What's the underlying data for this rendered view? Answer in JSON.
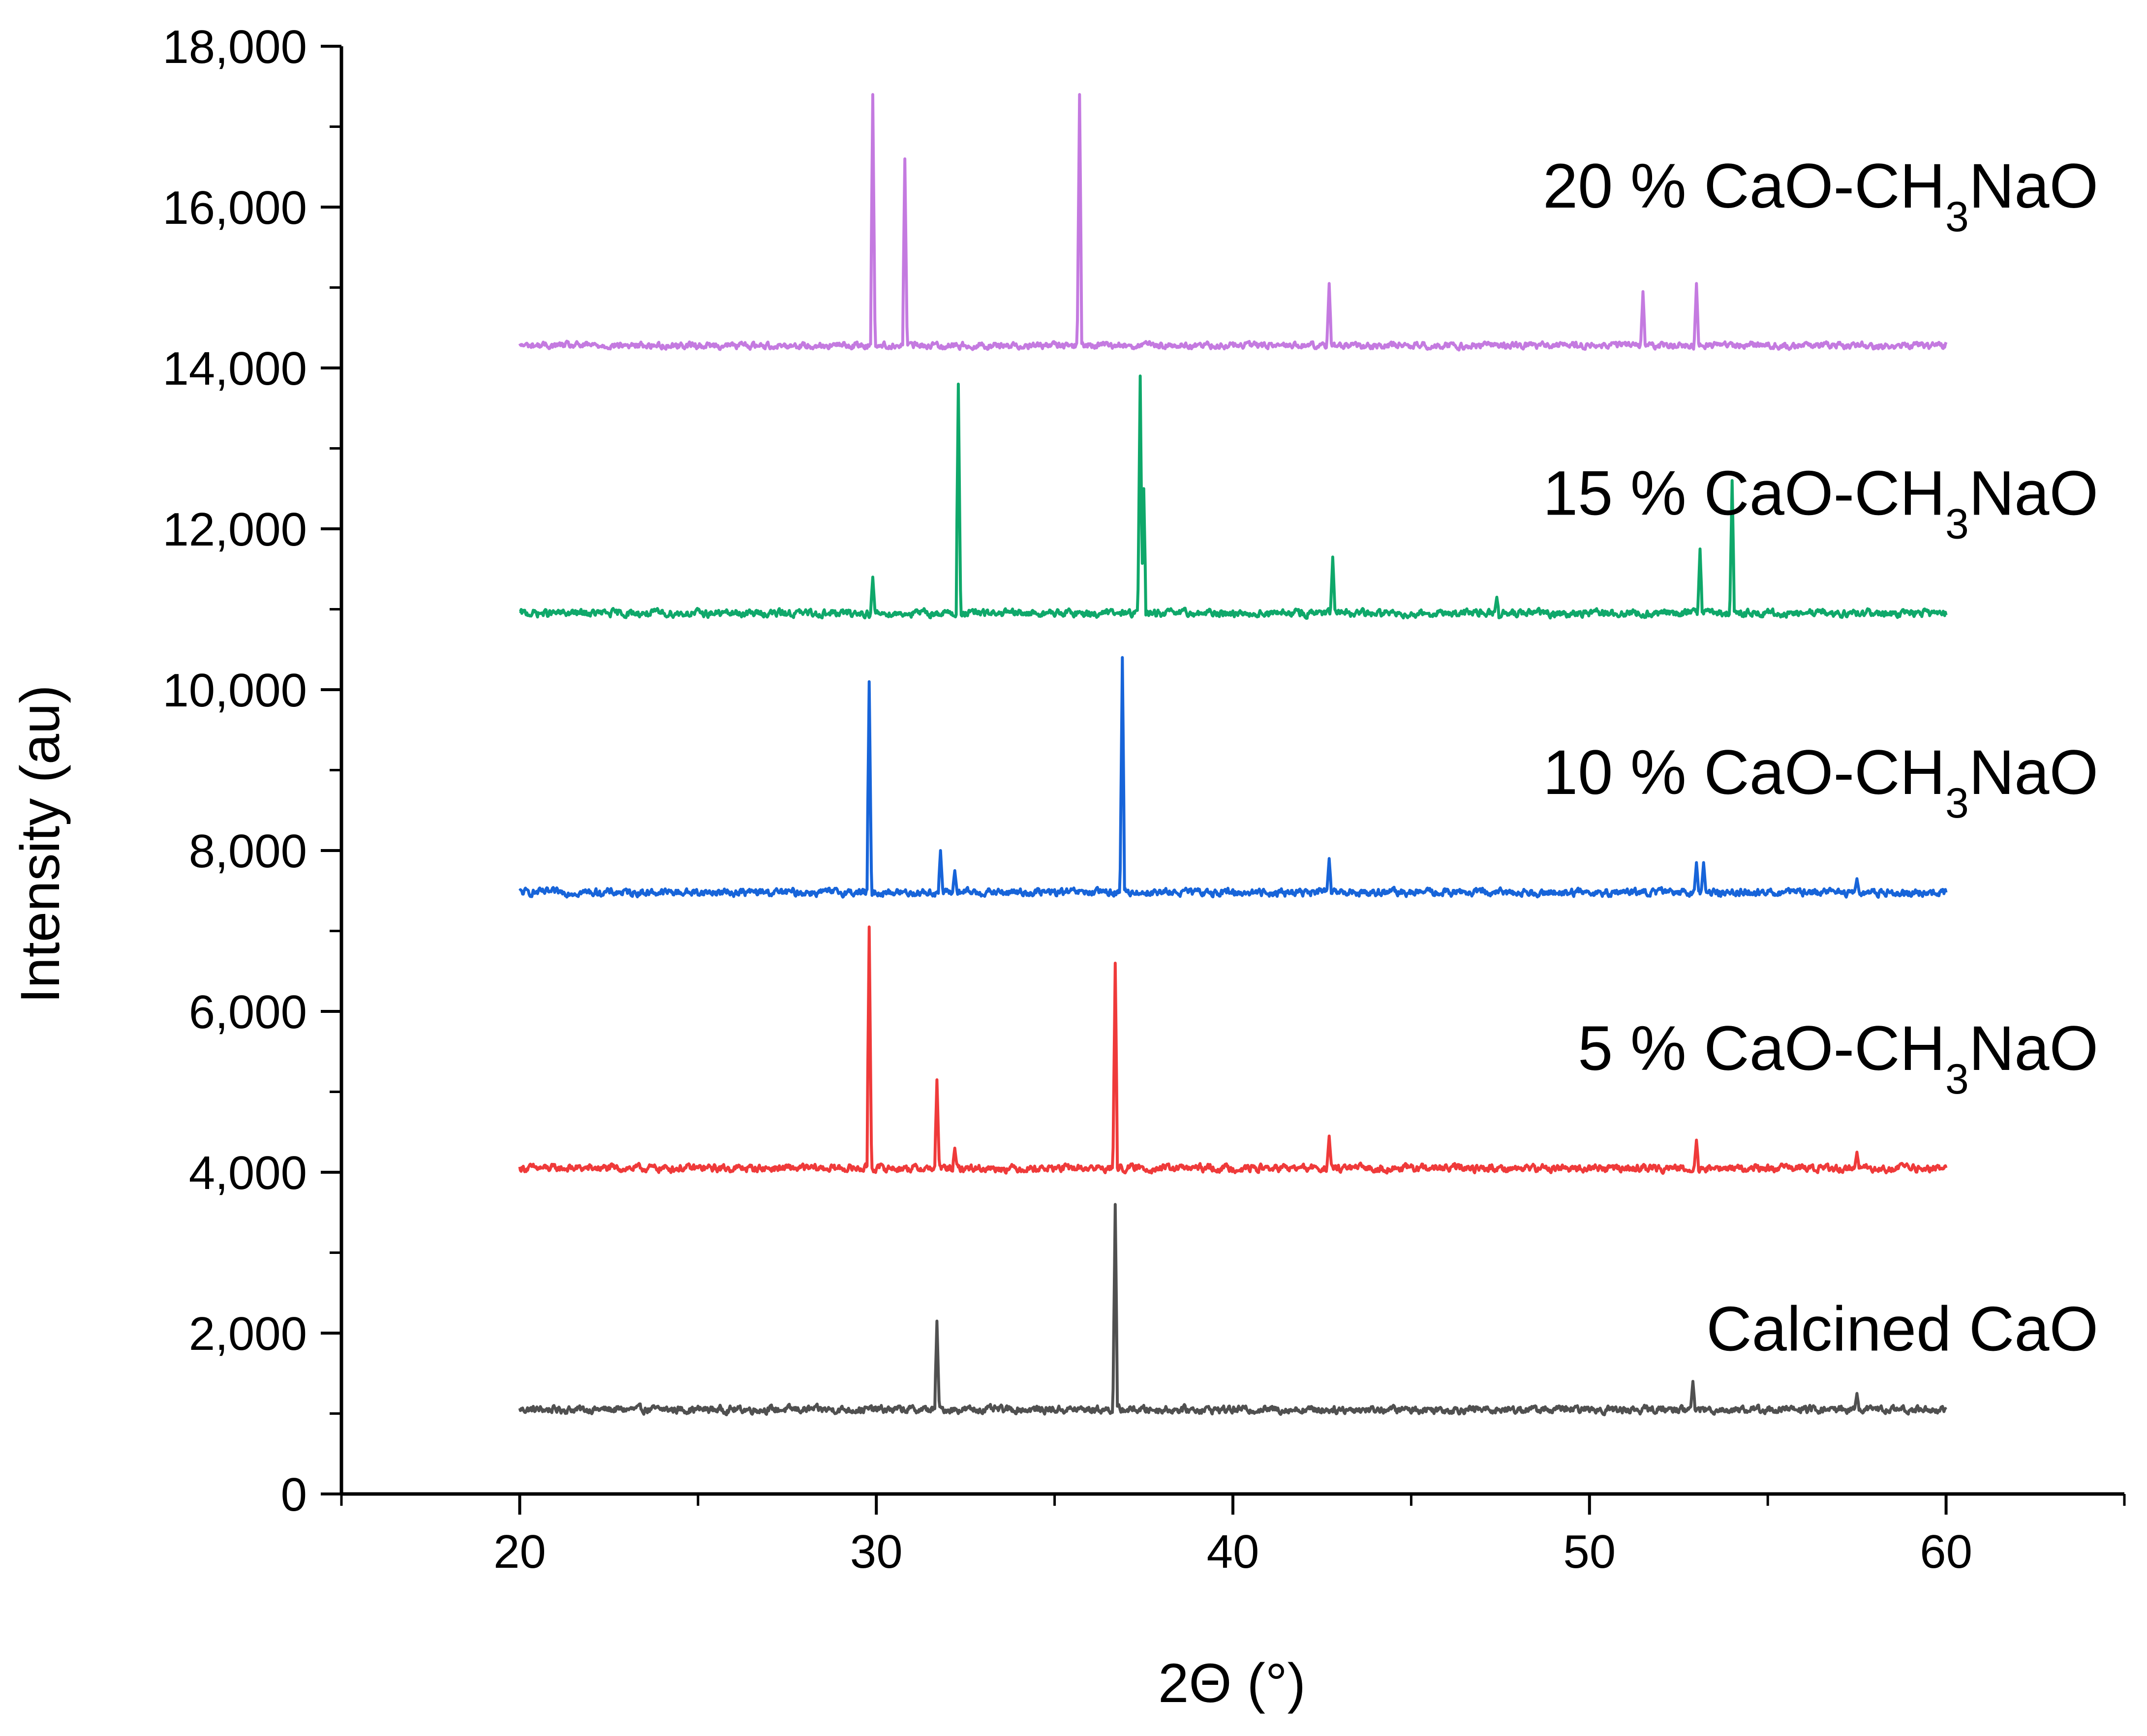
{
  "chart_data": {
    "type": "line",
    "title": "",
    "xlabel": "2Θ (°)",
    "ylabel": "Intensity (au)",
    "xlim": [
      15,
      65
    ],
    "ylim": [
      0,
      18000
    ],
    "x_ticks": [
      20,
      30,
      40,
      50,
      60
    ],
    "x_tick_labels": [
      "20",
      "30",
      "40",
      "50",
      "60"
    ],
    "y_ticks": [
      0,
      2000,
      4000,
      6000,
      8000,
      10000,
      12000,
      14000,
      16000,
      18000
    ],
    "y_tick_labels": [
      "0",
      "2,000",
      "4,000",
      "6,000",
      "8,000",
      "10,000",
      "12,000",
      "14,000",
      "16,000",
      "18,000"
    ],
    "x_range": [
      20,
      60
    ],
    "series": [
      {
        "name": "Calcined CaO",
        "label_main": "Calcined CaO",
        "label_sub": "",
        "label_tail": "",
        "color": "#505050",
        "baseline": 1050,
        "noise": 80,
        "peaks": [
          [
            31.7,
            2150
          ],
          [
            36.7,
            3600
          ],
          [
            52.9,
            1400
          ],
          [
            57.5,
            1250
          ]
        ]
      },
      {
        "name": "5 % CaO-CH3NaO",
        "label_main": "5 % CaO-CH",
        "label_sub": "3",
        "label_tail": "NaO",
        "color": "#ef3a3a",
        "baseline": 4050,
        "noise": 80,
        "peaks": [
          [
            29.8,
            7050
          ],
          [
            31.7,
            5150
          ],
          [
            32.2,
            4300
          ],
          [
            36.7,
            6600
          ],
          [
            42.7,
            4450
          ],
          [
            53.0,
            4400
          ],
          [
            57.5,
            4250
          ]
        ]
      },
      {
        "name": "10 % CaO-CH3NaO",
        "label_main": "10 % CaO-CH",
        "label_sub": "3",
        "label_tail": "NaO",
        "color": "#1764d9",
        "baseline": 7480,
        "noise": 80,
        "peaks": [
          [
            29.8,
            10100
          ],
          [
            31.8,
            8000
          ],
          [
            32.2,
            7750
          ],
          [
            36.9,
            10400
          ],
          [
            42.7,
            7900
          ],
          [
            53.0,
            7850
          ],
          [
            53.2,
            7850
          ],
          [
            57.5,
            7650
          ]
        ]
      },
      {
        "name": "15 % CaO-CH3NaO",
        "label_main": "15 % CaO-CH",
        "label_sub": "3",
        "label_tail": "NaO",
        "color": "#0fa86a",
        "baseline": 10950,
        "noise": 80,
        "peaks": [
          [
            29.9,
            11400
          ],
          [
            32.3,
            13800
          ],
          [
            37.4,
            13900
          ],
          [
            37.5,
            12500
          ],
          [
            42.8,
            11650
          ],
          [
            53.1,
            11750
          ],
          [
            54.0,
            12600
          ],
          [
            47.4,
            11150
          ]
        ]
      },
      {
        "name": "20 % CaO-CH3NaO",
        "label_main": "20 % CaO-CH",
        "label_sub": "3",
        "label_tail": "NaO",
        "color": "#c47ae0",
        "baseline": 14280,
        "noise": 70,
        "peaks": [
          [
            29.9,
            17400
          ],
          [
            30.8,
            16600
          ],
          [
            35.7,
            17400
          ],
          [
            42.7,
            15050
          ],
          [
            51.5,
            14950
          ],
          [
            53.0,
            15050
          ]
        ]
      }
    ]
  }
}
